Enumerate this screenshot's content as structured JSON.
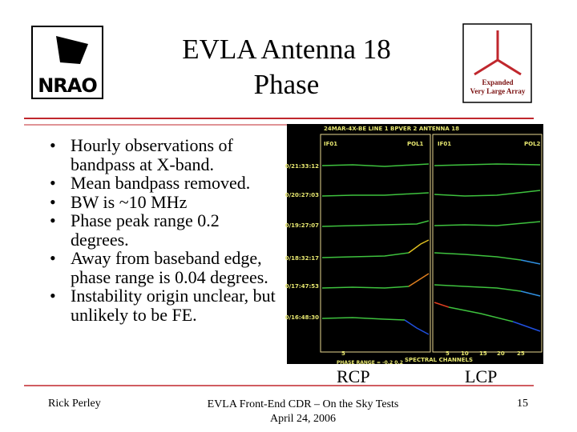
{
  "header": {
    "title_lines": [
      "EVLA Antenna 18",
      "Phase"
    ],
    "left_logo": "NRAO",
    "right_logo_lines": [
      "Expanded",
      "Very Large Array"
    ]
  },
  "bullets": [
    "Hourly observations of bandpass at X-band.",
    "Mean bandpass removed.",
    "BW is ~10 MHz",
    "Phase peak range 0.2 degrees.",
    "Away from baseband edge, phase range is 0.04 degrees.",
    "Instability origin unclear, but unlikely to be FE."
  ],
  "plot": {
    "title": "24MAR-4X-BE LINE 1 BPVER 2 ANTENNA 18",
    "panel_labels": [
      "IF01",
      "POL1",
      "IF01",
      "POL2"
    ],
    "row_labels": [
      "0/21:33:12",
      "0/20:27:03",
      "0/19:27:07",
      "0/18:32:17",
      "0/17:47:53",
      "0/16:48:30"
    ],
    "left_ticks": [
      "5"
    ],
    "right_ticks": [
      "5",
      "10",
      "15",
      "20",
      "25"
    ],
    "x_label": "SPECTRAL CHANNELS",
    "range_note": "PHASE RANGE = -0.2 0.2"
  },
  "captions": [
    "RCP",
    "LCP"
  ],
  "footer": {
    "author": "Rick Perley",
    "center_lines": [
      "EVLA Front-End CDR – On the Sky Tests",
      "April 24, 2006"
    ],
    "page": "15"
  }
}
